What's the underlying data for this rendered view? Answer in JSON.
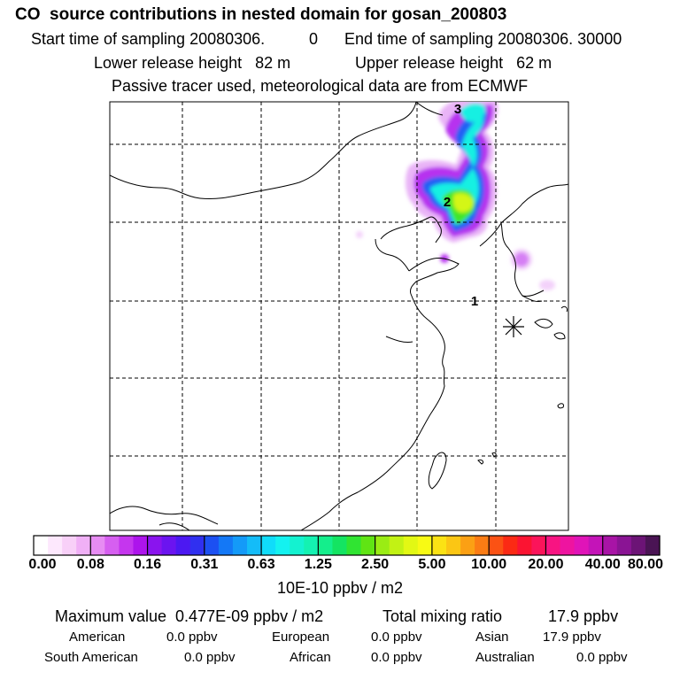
{
  "header": {
    "title": "CO  source contributions in nested domain for gosan_200803",
    "start_label": "Start time of sampling 20080306.",
    "start_hour": "0",
    "end_label": "End time of sampling 20080306. 30000",
    "lower_release": "Lower release height   82 m",
    "upper_release": "Upper release height   62 m",
    "tracer_note": "Passive tracer used, meteorological data are from ECMWF"
  },
  "map": {
    "markers": [
      "3",
      "2",
      "1"
    ],
    "station_symbol": "asterisk-marker"
  },
  "colorbar": {
    "labels": [
      "0.00",
      "0.08",
      "0.16",
      "0.31",
      "0.63",
      "1.25",
      "2.50",
      "5.00",
      "10.00",
      "20.00",
      "40.00",
      "80.00"
    ],
    "unit": "10E-10 ppbv / m2",
    "colors": [
      "#ffffff",
      "#fde8fd",
      "#f8d0f8",
      "#f0b0f6",
      "#e78cf3",
      "#d65ff0",
      "#c536ee",
      "#ad14ec",
      "#8a14ee",
      "#6b14f0",
      "#4c18f2",
      "#3030f0",
      "#1c50f2",
      "#1478f6",
      "#149af8",
      "#14bcf8",
      "#10dcfa",
      "#14f2f0",
      "#14f2d0",
      "#14f2b2",
      "#14ee8c",
      "#14e462",
      "#30e432",
      "#60e414",
      "#9aec14",
      "#c2f214",
      "#e2f814",
      "#f8fa14",
      "#fbe214",
      "#fbc614",
      "#fba014",
      "#fb7c14",
      "#fb5214",
      "#fb2a14",
      "#fb1432",
      "#fb145a",
      "#f81482",
      "#ee14a0",
      "#e014b8",
      "#c414b8",
      "#a814a6",
      "#8a1494",
      "#6c1476",
      "#4a1454"
    ]
  },
  "stats": {
    "max_label": "Maximum value  0.477E-09 ppbv / m2",
    "total_label": "Total mixing ratio",
    "total_value": "17.9 ppbv",
    "american_label": "American",
    "american_value": "0.0 ppbv",
    "european_label": "European",
    "european_value": "0.0 ppbv",
    "asian_label": "Asian",
    "asian_value": "17.9 ppbv",
    "south_american_label": "South American",
    "south_american_value": "0.0 ppbv",
    "african_label": "African",
    "african_value": "0.0 ppbv",
    "australian_label": "Australian",
    "australian_value": "0.0 ppbv"
  }
}
